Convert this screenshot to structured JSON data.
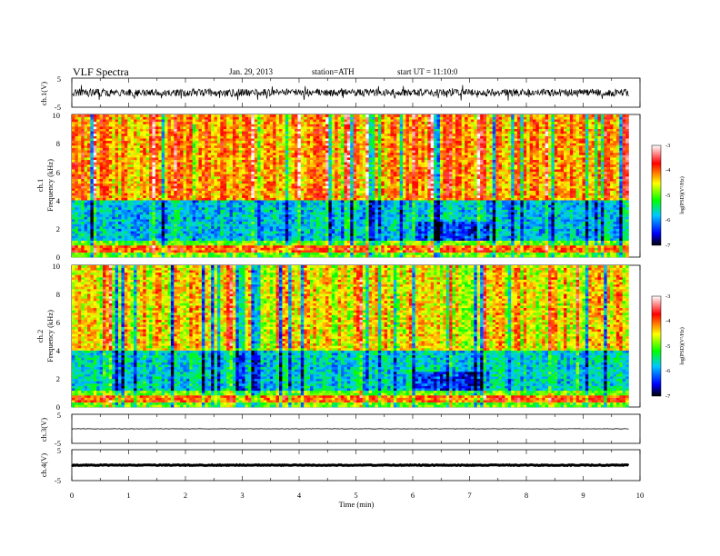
{
  "header": {
    "title": "VLF  Spectra",
    "date": "Jan. 29, 2013",
    "station": "station=ATH",
    "start": "start  UT  =    11:10:0"
  },
  "colors": {
    "spectrogram_scale": [
      "#000000",
      "#0000ff",
      "#00c8ff",
      "#00ff00",
      "#ffff00",
      "#ff0000",
      "#ffffff"
    ],
    "trace": "#000000"
  },
  "chart_data": [
    {
      "type": "line",
      "panel": "ch1-waveform",
      "ylabel": "ch.1(V)",
      "ylim": [
        -5,
        5
      ],
      "yticks": [
        "5",
        "-5"
      ],
      "x_range_min": [
        0,
        9.8
      ],
      "series": [
        {
          "values_summary": "noise trace about 0 V, amplitude roughly ±2 V"
        }
      ]
    },
    {
      "type": "heatmap",
      "panel": "ch1-spectrogram",
      "channel_label": "ch.1",
      "ylabel": "Frequency  (kHz)",
      "ylim": [
        0,
        10
      ],
      "yticks": [
        "10",
        "8",
        "6",
        "4",
        "2",
        "0"
      ],
      "x_range_min": [
        0,
        9.8
      ],
      "colorbar": {
        "label": "log(PSD)(V²/Hz)",
        "range": [
          -7,
          -3
        ],
        "ticks": [
          "-3",
          "-4",
          "-5",
          "-6",
          "-7"
        ]
      },
      "bands": [
        {
          "freq_khz": [
            4,
            10
          ],
          "logpsd": -4.2
        },
        {
          "freq_khz": [
            1.2,
            4
          ],
          "logpsd": -5.8
        },
        {
          "freq_khz": [
            0.4,
            0.8
          ],
          "logpsd": -4.0
        }
      ]
    },
    {
      "type": "heatmap",
      "panel": "ch2-spectrogram",
      "channel_label": "ch.2",
      "ylabel": "Frequency  (kHz)",
      "ylim": [
        0,
        10
      ],
      "yticks": [
        "10",
        "8",
        "6",
        "4",
        "2",
        "0"
      ],
      "x_range_min": [
        0,
        9.8
      ],
      "colorbar": {
        "label": "log(PSD)(V²/Hz)",
        "range": [
          -7,
          -3
        ],
        "ticks": [
          "-3",
          "-4",
          "-5",
          "-6",
          "-7"
        ]
      },
      "bands": [
        {
          "freq_khz": [
            4,
            10
          ],
          "logpsd": -4.5
        },
        {
          "freq_khz": [
            1.2,
            4
          ],
          "logpsd": -5.7
        },
        {
          "freq_khz": [
            0.4,
            0.8
          ],
          "logpsd": -4.0
        }
      ]
    },
    {
      "type": "line",
      "panel": "ch3-waveform",
      "ylabel": "ch.3(V)",
      "ylim": [
        -5,
        5
      ],
      "yticks": [
        "5",
        "-5"
      ],
      "x_range_min": [
        0,
        9.8
      ],
      "series": [
        {
          "values_summary": "flat trace near 0 V"
        }
      ]
    },
    {
      "type": "line",
      "panel": "ch4-waveform",
      "ylabel": "ch.4(V)",
      "ylim": [
        -5,
        5
      ],
      "yticks": [
        "5",
        "-5"
      ],
      "x_range_min": [
        0,
        9.8
      ],
      "series": [
        {
          "values_summary": "flat trace near 0 V, thick"
        }
      ]
    }
  ],
  "xaxis": {
    "label": "Time  (min)",
    "xlim": [
      0,
      10
    ],
    "ticks": [
      "0",
      "1",
      "2",
      "3",
      "4",
      "5",
      "6",
      "7",
      "8",
      "9",
      "10"
    ]
  }
}
